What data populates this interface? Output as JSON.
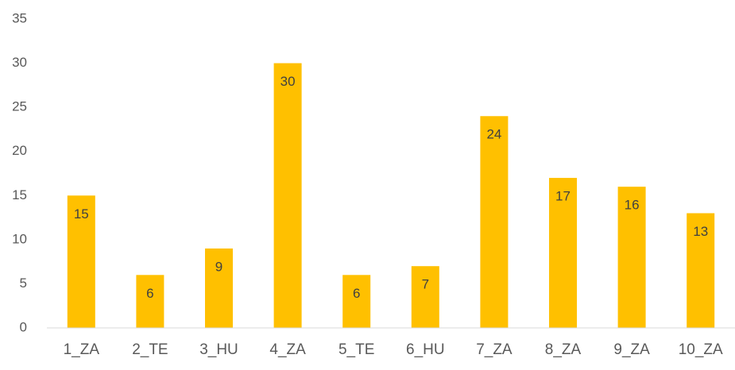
{
  "chart_data": {
    "type": "bar",
    "categories": [
      "1_ZA",
      "2_TE",
      "3_HU",
      "4_ZA",
      "5_TE",
      "6_HU",
      "7_ZA",
      "8_ZA",
      "9_ZA",
      "10_ZA"
    ],
    "values": [
      15,
      6,
      9,
      30,
      6,
      7,
      24,
      17,
      16,
      13
    ],
    "color": "#ffc000",
    "ylim": [
      0,
      35
    ],
    "yticks": [
      0,
      5,
      10,
      15,
      20,
      25,
      30,
      35
    ],
    "grid": false
  }
}
